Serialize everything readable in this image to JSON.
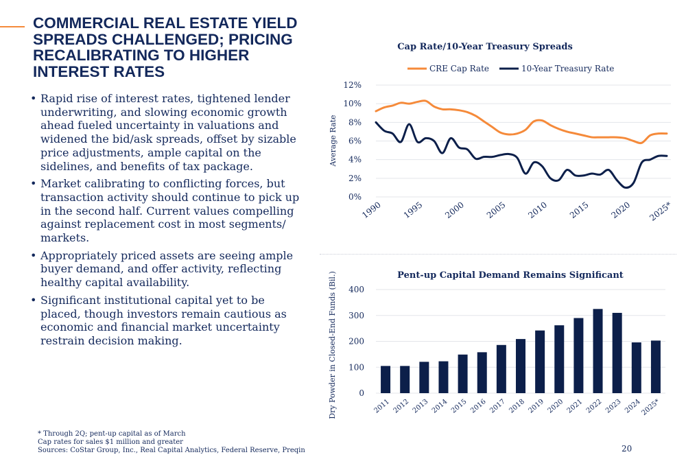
{
  "slide": {
    "title": "COMMERCIAL REAL ESTATE YIELD SPREADS CHALLENGED; PRICING RECALIBRATING TO HIGHER INTEREST RATES",
    "bullets": [
      "Rapid rise of interest rates, tightened lender underwriting, and slowing economic growth ahead fueled uncertainty in valuations and widened the bid/ask spreads, offset by sizable price adjustments, ample capital on the sidelines, and benefits of tax package.",
      "Market calibrating to conflicting forces, but transaction activity should continue to pick up in the second half. Current values compelling against replacement cost in most segments/ markets.",
      "Appropriately priced assets are seeing ample buyer demand, and offer activity, reflecting healthy capital availability.",
      "Significant institutional capital yet to be placed, though investors remain cautious as economic and financial market uncertainty restrain decision making."
    ],
    "footnotes": [
      "* Through 2Q; pent-up capital as of March",
      "Cap rates for sales $1 million and greater",
      "Sources: CoStar Group, Inc., Real Capital Analytics, Federal Reserve, Preqin"
    ],
    "page_number": "20",
    "colors": {
      "navy": "#13285b",
      "orange": "#f58a3a",
      "series_navy": "#0c1f4a"
    }
  },
  "chart_data": [
    {
      "type": "line",
      "title": "Cap Rate/10-Year Treasury Spreads",
      "ylabel": "Average Rate",
      "xlabel": "",
      "xlim": [
        1990,
        2025.5
      ],
      "ylim": [
        0,
        12
      ],
      "x_ticks": [
        "1990",
        "1995",
        "2000",
        "2005",
        "2010",
        "2015",
        "2020",
        "2025*"
      ],
      "y_ticks": [
        "0%",
        "2%",
        "4%",
        "6%",
        "8%",
        "10%",
        "12%"
      ],
      "grid": true,
      "legend": "top",
      "series": [
        {
          "name": "CRE Cap Rate",
          "color": "#f58a3a",
          "points": [
            [
              1990,
              9.2
            ],
            [
              1991,
              9.6
            ],
            [
              1992,
              9.8
            ],
            [
              1993,
              10.1
            ],
            [
              1994,
              10.0
            ],
            [
              1995,
              10.2
            ],
            [
              1996,
              10.3
            ],
            [
              1997,
              9.7
            ],
            [
              1998,
              9.4
            ],
            [
              1999,
              9.4
            ],
            [
              2000,
              9.3
            ],
            [
              2001,
              9.1
            ],
            [
              2002,
              8.7
            ],
            [
              2003,
              8.1
            ],
            [
              2004,
              7.5
            ],
            [
              2005,
              6.9
            ],
            [
              2006,
              6.7
            ],
            [
              2007,
              6.8
            ],
            [
              2008,
              7.2
            ],
            [
              2009,
              8.1
            ],
            [
              2010,
              8.2
            ],
            [
              2011,
              7.7
            ],
            [
              2012,
              7.3
            ],
            [
              2013,
              7.0
            ],
            [
              2014,
              6.8
            ],
            [
              2015,
              6.6
            ],
            [
              2016,
              6.4
            ],
            [
              2017,
              6.4
            ],
            [
              2018,
              6.4
            ],
            [
              2019,
              6.4
            ],
            [
              2020,
              6.3
            ],
            [
              2021,
              6.0
            ],
            [
              2022,
              5.8
            ],
            [
              2023,
              6.6
            ],
            [
              2024,
              6.8
            ],
            [
              2025,
              6.8
            ]
          ]
        },
        {
          "name": "10-Year Treasury Rate",
          "color": "#0c1f4a",
          "points": [
            [
              1990,
              8.0
            ],
            [
              1991,
              7.1
            ],
            [
              1992,
              6.8
            ],
            [
              1993,
              5.9
            ],
            [
              1994,
              7.8
            ],
            [
              1995,
              5.9
            ],
            [
              1996,
              6.3
            ],
            [
              1997,
              6.0
            ],
            [
              1998,
              4.7
            ],
            [
              1999,
              6.3
            ],
            [
              2000,
              5.3
            ],
            [
              2001,
              5.1
            ],
            [
              2002,
              4.1
            ],
            [
              2003,
              4.3
            ],
            [
              2004,
              4.3
            ],
            [
              2005,
              4.5
            ],
            [
              2006,
              4.6
            ],
            [
              2007,
              4.2
            ],
            [
              2008,
              2.5
            ],
            [
              2009,
              3.7
            ],
            [
              2010,
              3.3
            ],
            [
              2011,
              2.0
            ],
            [
              2012,
              1.8
            ],
            [
              2013,
              2.9
            ],
            [
              2014,
              2.3
            ],
            [
              2015,
              2.3
            ],
            [
              2016,
              2.5
            ],
            [
              2017,
              2.4
            ],
            [
              2018,
              2.9
            ],
            [
              2019,
              1.8
            ],
            [
              2020,
              1.0
            ],
            [
              2021,
              1.5
            ],
            [
              2022,
              3.7
            ],
            [
              2023,
              4.0
            ],
            [
              2024,
              4.4
            ],
            [
              2025,
              4.4
            ]
          ]
        }
      ]
    },
    {
      "type": "bar",
      "title": "Pent-up Capital Demand Remains Significant",
      "ylabel": "Dry Powder in Closed-End Funds (Bil.)",
      "xlabel": "",
      "ylim": [
        0,
        400
      ],
      "y_ticks": [
        "0",
        "100",
        "200",
        "300",
        "400"
      ],
      "grid": true,
      "color": "#0c1f4a",
      "categories": [
        "2011",
        "2012",
        "2013",
        "2014",
        "2015",
        "2016",
        "2017",
        "2018",
        "2019",
        "2020",
        "2021",
        "2022",
        "2023",
        "2024",
        "2025*"
      ],
      "values": [
        105,
        105,
        121,
        123,
        149,
        158,
        186,
        209,
        242,
        262,
        290,
        325,
        310,
        196,
        203
      ]
    }
  ]
}
